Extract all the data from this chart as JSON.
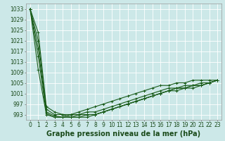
{
  "title": "Graphe pression niveau de la mer (hPa)",
  "bg_color": "#cce8e8",
  "grid_color": "#ffffff",
  "line_color": "#1a5c1a",
  "xlim": [
    -0.5,
    23.5
  ],
  "ylim": [
    991,
    1035
  ],
  "yticks": [
    993,
    997,
    1001,
    1005,
    1009,
    1013,
    1017,
    1021,
    1025,
    1029,
    1033
  ],
  "xticks": [
    0,
    1,
    2,
    3,
    4,
    5,
    6,
    7,
    8,
    9,
    10,
    11,
    12,
    13,
    14,
    15,
    16,
    17,
    18,
    19,
    20,
    21,
    22,
    23
  ],
  "lines": [
    [
      1033,
      1024,
      996,
      994,
      993,
      993,
      993,
      993,
      993,
      994,
      995,
      996,
      997,
      998,
      999,
      1000,
      1001,
      1002,
      1003,
      1003,
      1004,
      1004,
      1005,
      1006
    ],
    [
      1033,
      1021,
      995,
      993,
      993,
      992,
      992,
      992,
      993,
      994,
      995,
      996,
      997,
      998,
      999,
      1000,
      1001,
      1002,
      1003,
      1003,
      1004,
      1004,
      1005,
      1006
    ],
    [
      1033,
      1018,
      994,
      992.5,
      992,
      992,
      992,
      993,
      993,
      994,
      995,
      996,
      997,
      998,
      999,
      1000,
      1001,
      1002,
      1002,
      1003,
      1003,
      1004,
      1005,
      1006
    ],
    [
      1033,
      1015,
      993.5,
      992,
      992,
      992,
      993,
      994,
      994,
      995,
      996,
      997,
      998,
      999,
      1000,
      1001,
      1002,
      1003,
      1003,
      1004,
      1004,
      1005,
      1005,
      1006
    ],
    [
      1033,
      1010,
      993,
      992,
      992,
      993,
      994,
      995,
      996,
      997,
      998,
      999,
      1000,
      1001,
      1002,
      1003,
      1004,
      1004,
      1005,
      1005,
      1006,
      1006,
      1006,
      1006
    ]
  ],
  "marker": "+",
  "markersize": 3,
  "linewidth": 0.8,
  "title_fontsize": 7,
  "tick_fontsize": 5.5
}
